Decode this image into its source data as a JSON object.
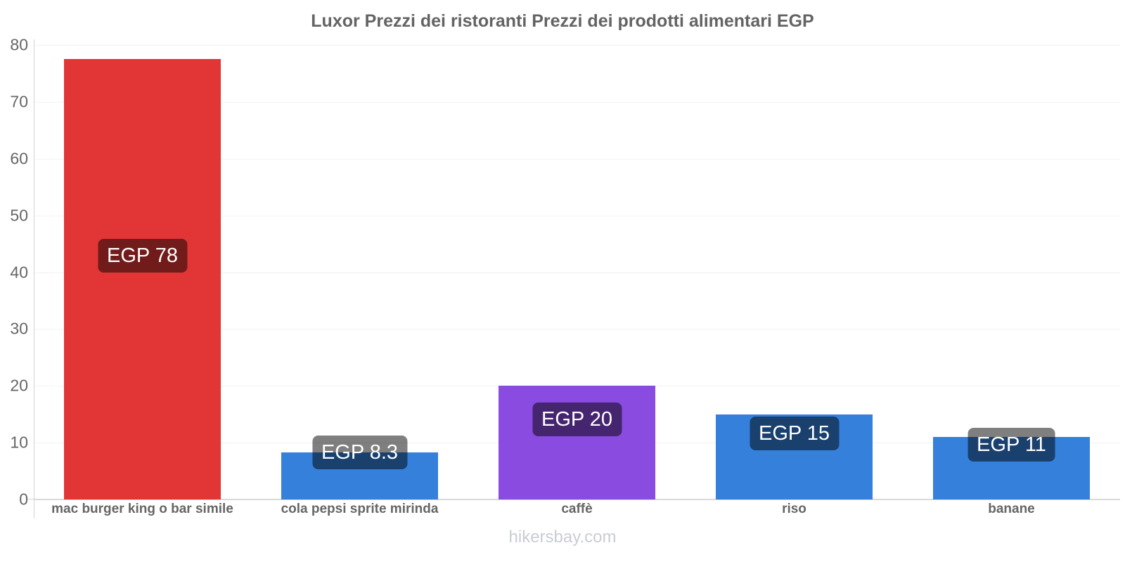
{
  "title": "Luxor Prezzi dei ristoranti Prezzi dei prodotti alimentari EGP",
  "footer": "hikersbay.com",
  "chart_data": {
    "type": "bar",
    "title": "Luxor Prezzi dei ristoranti Prezzi dei prodotti alimentari EGP",
    "currency": "EGP",
    "categories": [
      "mac burger king o bar simile",
      "cola pepsi sprite mirinda",
      "caffè",
      "riso",
      "banane"
    ],
    "values": [
      77.5,
      8.3,
      20,
      15,
      11
    ],
    "labels": [
      "EGP 78",
      "EGP 8.3",
      "EGP 20",
      "EGP 15",
      "EGP 11"
    ],
    "bar_colors": [
      "#e23636",
      "#3580db",
      "#8a4be0",
      "#3580db",
      "#3580db"
    ],
    "label_bg": "rgba(0,0,0,0.5)",
    "label_text_color": "#ffffff",
    "xlabel": "",
    "ylabel": "",
    "ylim": [
      0,
      80
    ],
    "yticks": [
      0,
      10,
      20,
      30,
      40,
      50,
      60,
      70,
      80
    ],
    "grid": "horizontal-faint",
    "legend_position": "none"
  }
}
